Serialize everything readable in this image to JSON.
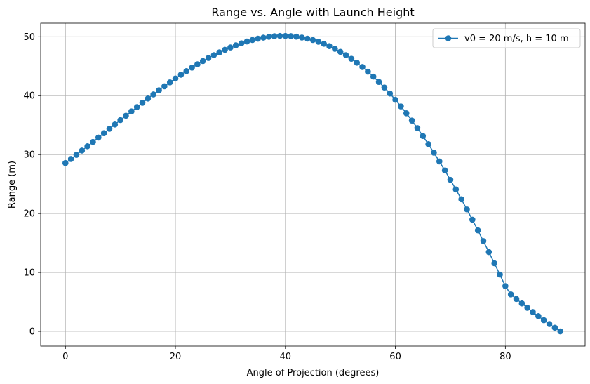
{
  "chart_data": {
    "type": "line",
    "title": "Range vs. Angle with Launch Height",
    "xlabel": "Angle of Projection (degrees)",
    "ylabel": "Range (m)",
    "xlim": [
      -4.5,
      94.5
    ],
    "ylim": [
      -2.5,
      52.3
    ],
    "xticks": [
      0,
      20,
      40,
      60,
      80
    ],
    "yticks": [
      0,
      10,
      20,
      30,
      40,
      50
    ],
    "grid": true,
    "legend_position": "top-right",
    "marker": "circle",
    "series": [
      {
        "name": "v0 = 20 m/s, h = 10 m",
        "color": "#1f77b4",
        "x": [
          0,
          1,
          2,
          3,
          4,
          5,
          6,
          7,
          8,
          9,
          10,
          11,
          12,
          13,
          14,
          15,
          16,
          17,
          18,
          19,
          20,
          21,
          22,
          23,
          24,
          25,
          26,
          27,
          28,
          29,
          30,
          31,
          32,
          33,
          34,
          35,
          36,
          37,
          38,
          39,
          40,
          41,
          42,
          43,
          44,
          45,
          46,
          47,
          48,
          49,
          50,
          51,
          52,
          53,
          54,
          55,
          56,
          57,
          58,
          59,
          60,
          61,
          62,
          63,
          64,
          65,
          66,
          67,
          68,
          69,
          70,
          71,
          72,
          73,
          74,
          75,
          76,
          77,
          78,
          79,
          80,
          81,
          82,
          83,
          84,
          85,
          86,
          87,
          88,
          89,
          90
        ],
        "y": [
          28.57,
          29.25,
          29.96,
          30.68,
          31.42,
          32.15,
          32.89,
          33.63,
          34.37,
          35.11,
          35.86,
          36.6,
          37.33,
          38.06,
          38.79,
          39.51,
          40.22,
          40.91,
          41.59,
          42.26,
          42.91,
          43.55,
          44.16,
          44.75,
          45.32,
          45.87,
          46.39,
          46.88,
          47.35,
          47.78,
          48.18,
          48.55,
          48.89,
          49.19,
          49.45,
          49.67,
          49.85,
          49.99,
          50.09,
          50.14,
          50.14,
          50.1,
          50.01,
          49.87,
          49.68,
          49.44,
          49.15,
          48.8,
          48.4,
          47.95,
          47.44,
          46.88,
          46.26,
          45.59,
          44.86,
          44.07,
          43.23,
          42.33,
          41.38,
          40.37,
          39.3,
          38.18,
          37.01,
          35.78,
          34.5,
          33.16,
          31.77,
          30.33,
          28.84,
          27.31,
          25.72,
          24.09,
          22.42,
          20.7,
          18.95,
          17.15,
          15.32,
          13.46,
          11.56,
          9.64,
          7.68,
          6.28,
          5.5,
          4.74,
          4.0,
          3.28,
          2.58,
          1.9,
          1.25,
          0.62,
          0.0
        ]
      }
    ]
  }
}
